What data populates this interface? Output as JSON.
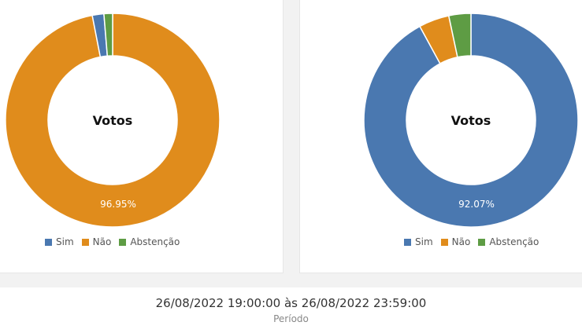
{
  "colors": {
    "Sim": "#4a78b0",
    "Não": "#e08c1c",
    "Abstenção": "#5e9c44"
  },
  "chart_data": [
    {
      "type": "pie",
      "variant": "doughnut",
      "center_label": "Votos",
      "categories": [
        "Sim",
        "Não",
        "Abstenção"
      ],
      "values": [
        1.75,
        96.95,
        1.3
      ],
      "data_label": "96.95%",
      "legend": [
        "Sim",
        "Não",
        "Abstenção"
      ],
      "legend_position": "bottom"
    },
    {
      "type": "pie",
      "variant": "doughnut",
      "center_label": "Votos",
      "categories": [
        "Sim",
        "Não",
        "Abstenção"
      ],
      "values": [
        92.07,
        4.6,
        3.33
      ],
      "data_label": "92.07%",
      "legend": [
        "Sim",
        "Não",
        "Abstenção"
      ],
      "legend_position": "bottom"
    }
  ],
  "footer": {
    "period": "26/08/2022 19:00:00 às 26/08/2022 23:59:00",
    "label": "Período"
  }
}
